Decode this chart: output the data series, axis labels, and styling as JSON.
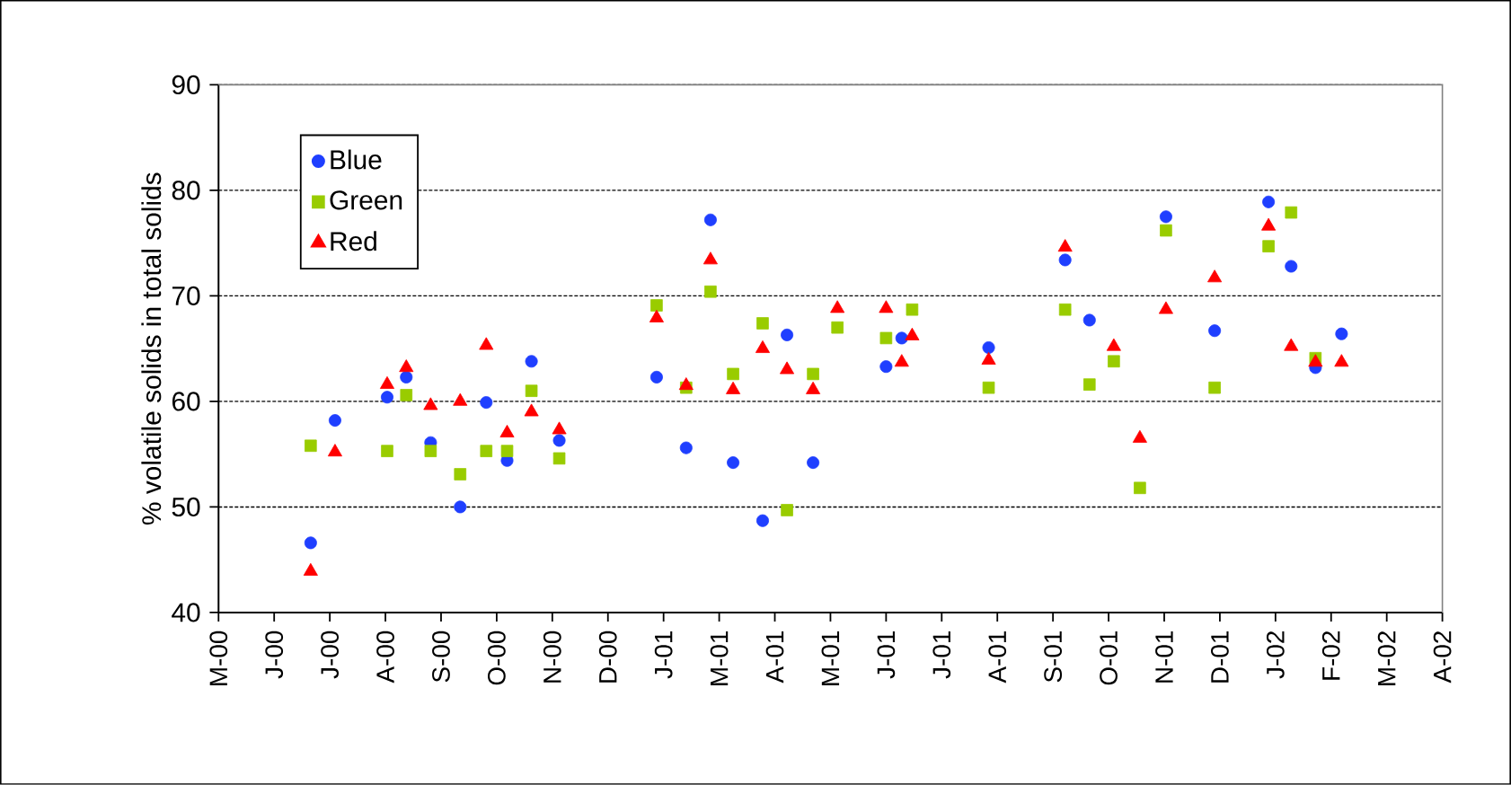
{
  "chart_data": {
    "type": "scatter",
    "ylabel": "% volatile solids in total solids",
    "xlim": [
      "2000-05-20",
      "2002-04-24"
    ],
    "xticks": [
      {
        "value": "2000-05-20",
        "label": "M-00"
      },
      {
        "value": "2000-06-21",
        "label": "J-00"
      },
      {
        "value": "2000-07-23",
        "label": "J-00"
      },
      {
        "value": "2000-08-24",
        "label": "A-00"
      },
      {
        "value": "2000-09-25",
        "label": "S-00"
      },
      {
        "value": "2000-10-27",
        "label": "O-00"
      },
      {
        "value": "2000-11-28",
        "label": "N-00"
      },
      {
        "value": "2000-12-30",
        "label": "D-00"
      },
      {
        "value": "2001-01-31",
        "label": "J-01"
      },
      {
        "value": "2001-03-04",
        "label": "M-01"
      },
      {
        "value": "2001-04-05",
        "label": "A-01"
      },
      {
        "value": "2001-05-07",
        "label": "M-01"
      },
      {
        "value": "2001-06-08",
        "label": "J-01"
      },
      {
        "value": "2001-07-10",
        "label": "J-01"
      },
      {
        "value": "2001-08-11",
        "label": "A-01"
      },
      {
        "value": "2001-09-12",
        "label": "S-01"
      },
      {
        "value": "2001-10-14",
        "label": "O-01"
      },
      {
        "value": "2001-11-15",
        "label": "N-01"
      },
      {
        "value": "2001-12-17",
        "label": "D-01"
      },
      {
        "value": "2002-01-18",
        "label": "J-02"
      },
      {
        "value": "2002-02-19",
        "label": "F-02"
      },
      {
        "value": "2002-03-23",
        "label": "M-02"
      },
      {
        "value": "2002-04-24",
        "label": "A-02"
      }
    ],
    "ylim": [
      40,
      90
    ],
    "yticks": [
      40,
      50,
      60,
      70,
      80,
      90
    ],
    "grid": "y",
    "legend": "top left",
    "series": [
      {
        "name": "Blue",
        "color": "#1f3fff",
        "marker": "circle",
        "x": [
          "2000-07-12",
          "2000-07-26",
          "2000-08-25",
          "2000-09-05",
          "2000-09-19",
          "2000-10-06",
          "2000-10-21",
          "2000-11-02",
          "2000-11-16",
          "2000-12-02",
          "2001-01-27",
          "2001-02-13",
          "2001-02-27",
          "2001-03-12",
          "2001-03-29",
          "2001-04-12",
          "2001-04-27",
          "2001-06-08",
          "2001-06-17",
          "2001-08-06",
          "2001-09-19",
          "2001-10-03",
          "2001-11-16",
          "2001-12-14",
          "2002-01-14",
          "2002-01-27",
          "2002-02-10",
          "2002-02-25"
        ],
        "values": [
          46.6,
          58.2,
          60.4,
          62.3,
          56.1,
          50.0,
          59.9,
          54.4,
          63.8,
          56.3,
          62.3,
          55.6,
          77.2,
          54.2,
          48.7,
          66.3,
          54.2,
          63.3,
          66.0,
          65.1,
          73.4,
          67.7,
          77.5,
          66.7,
          78.9,
          72.8,
          63.2,
          66.4
        ]
      },
      {
        "name": "Green",
        "color": "#99cc00",
        "marker": "square",
        "x": [
          "2000-07-12",
          "2000-08-25",
          "2000-09-05",
          "2000-09-19",
          "2000-10-06",
          "2000-10-21",
          "2000-11-02",
          "2000-11-16",
          "2000-12-02",
          "2001-01-27",
          "2001-02-13",
          "2001-02-27",
          "2001-03-12",
          "2001-03-29",
          "2001-04-12",
          "2001-04-27",
          "2001-05-11",
          "2001-06-08",
          "2001-06-23",
          "2001-08-06",
          "2001-09-19",
          "2001-10-03",
          "2001-10-17",
          "2001-11-01",
          "2001-11-16",
          "2001-12-14",
          "2002-01-14",
          "2002-01-27",
          "2002-02-10"
        ],
        "values": [
          55.8,
          55.3,
          60.6,
          55.3,
          53.1,
          55.3,
          55.3,
          61.0,
          54.6,
          69.1,
          61.3,
          70.4,
          62.6,
          67.4,
          49.7,
          62.6,
          67.0,
          66.0,
          68.7,
          61.3,
          68.7,
          61.6,
          63.8,
          51.8,
          76.2,
          61.3,
          74.7,
          77.9,
          64.1
        ]
      },
      {
        "name": "Red",
        "color": "#ff0000",
        "marker": "triangle",
        "x": [
          "2000-07-12",
          "2000-07-26",
          "2000-08-25",
          "2000-09-05",
          "2000-09-19",
          "2000-10-06",
          "2000-10-21",
          "2000-11-02",
          "2000-11-16",
          "2000-12-02",
          "2001-01-27",
          "2001-02-13",
          "2001-02-27",
          "2001-03-12",
          "2001-03-29",
          "2001-04-12",
          "2001-04-27",
          "2001-05-11",
          "2001-06-08",
          "2001-06-17",
          "2001-06-23",
          "2001-08-06",
          "2001-09-19",
          "2001-10-17",
          "2001-11-01",
          "2001-11-16",
          "2001-12-14",
          "2002-01-14",
          "2002-01-27",
          "2002-02-10",
          "2002-02-25"
        ],
        "values": [
          43.9,
          55.2,
          61.6,
          63.2,
          59.6,
          60.0,
          65.3,
          57.0,
          59.0,
          57.3,
          67.9,
          61.5,
          73.4,
          61.1,
          65.0,
          63.0,
          61.1,
          68.8,
          68.8,
          63.7,
          66.2,
          63.9,
          74.6,
          65.2,
          56.5,
          68.7,
          71.7,
          76.6,
          65.2,
          63.7,
          63.7
        ]
      }
    ]
  }
}
